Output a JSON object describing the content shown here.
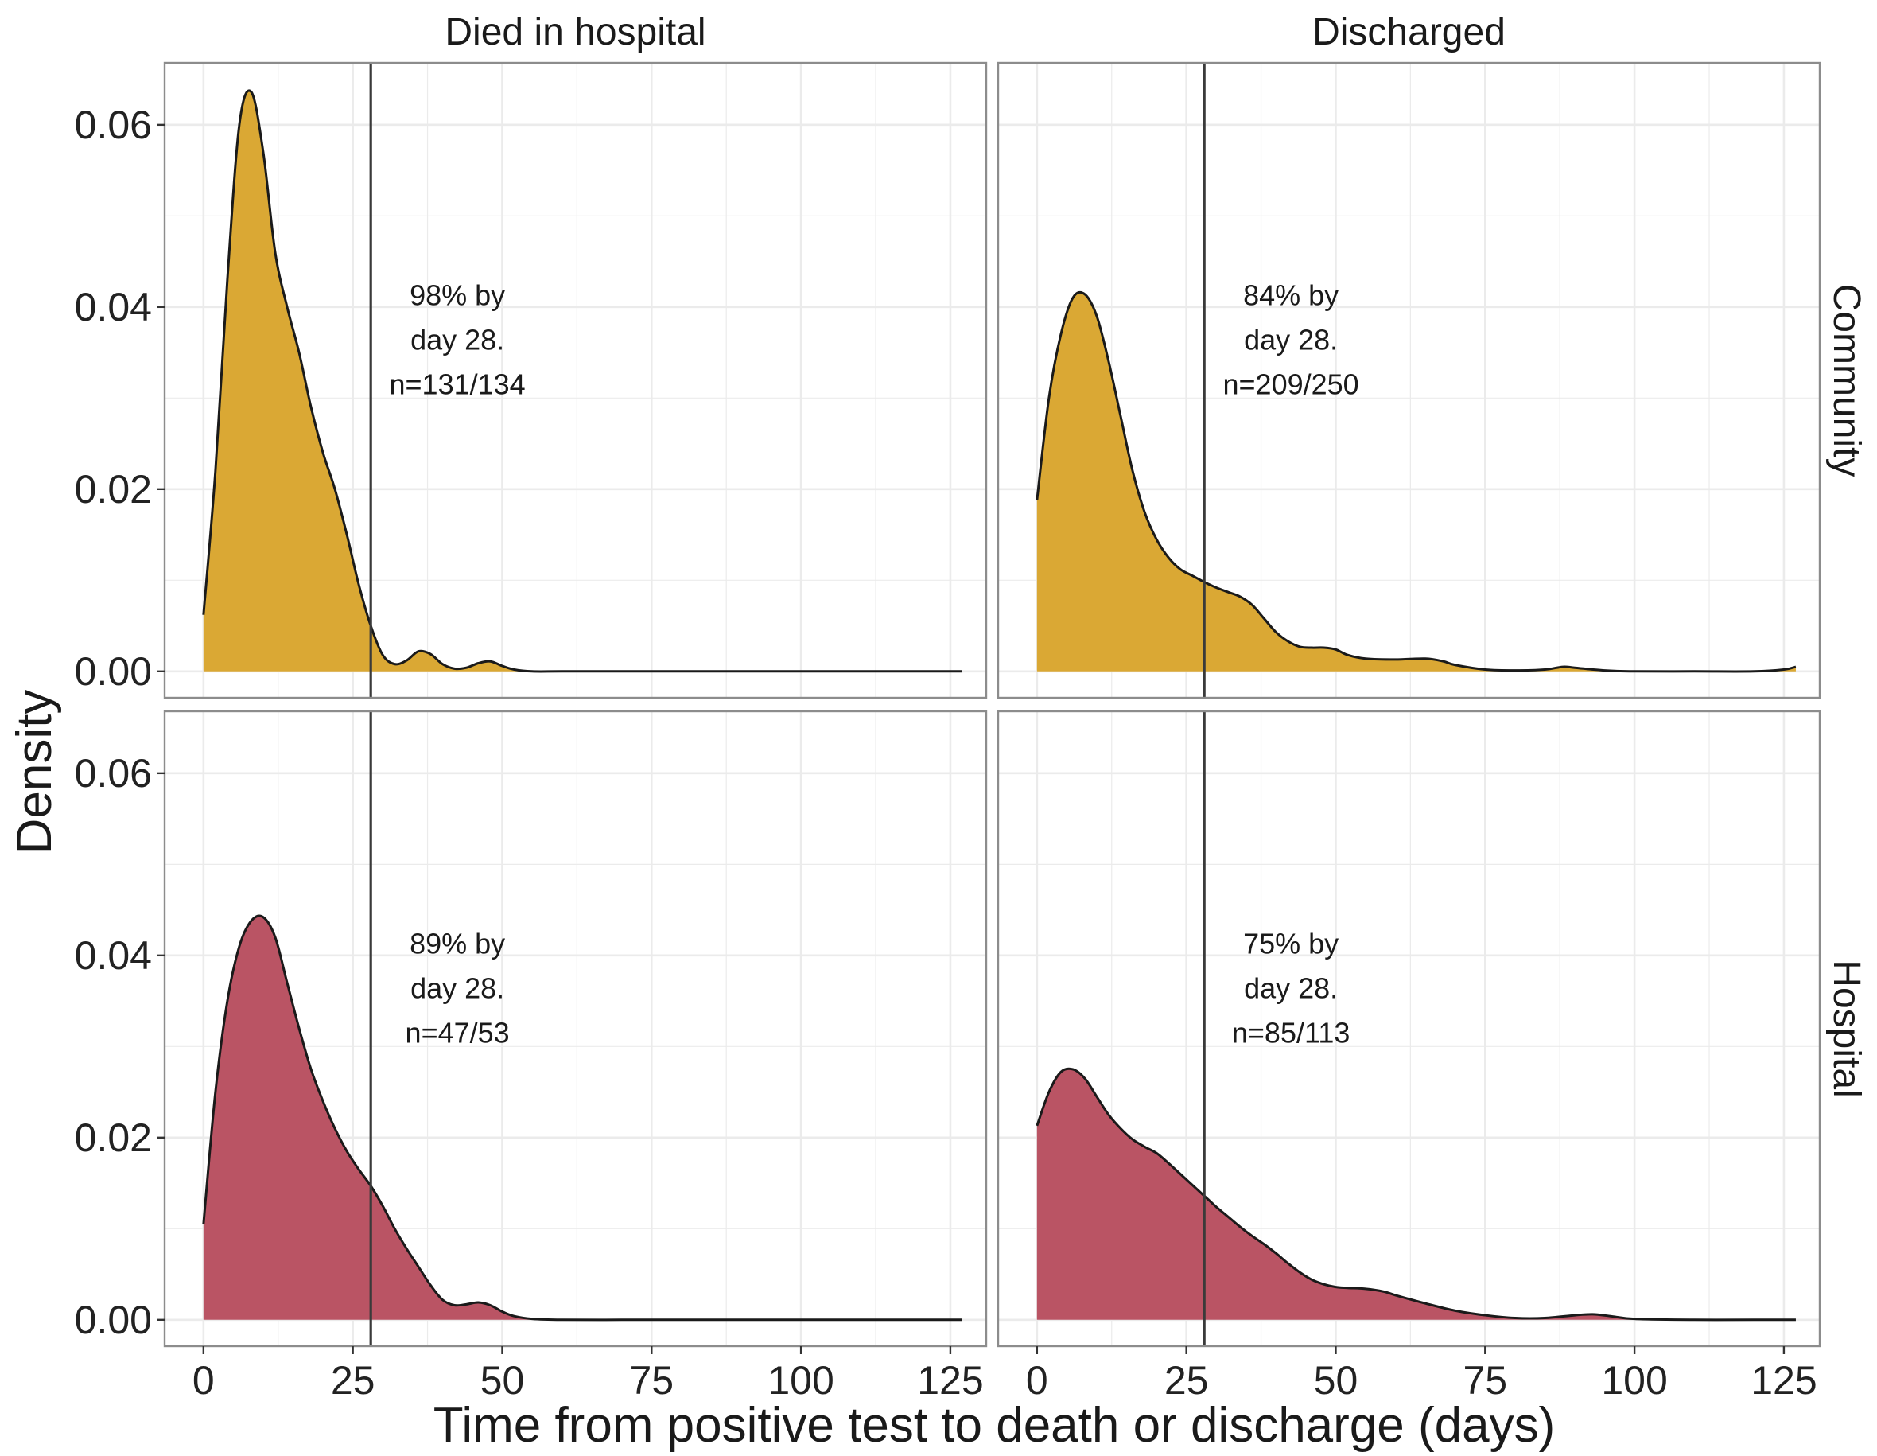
{
  "chart_data": {
    "type": "area",
    "title": "",
    "xlabel": "Time from positive test to death or discharge (days)",
    "ylabel": "Density",
    "xlim": [
      -6.5,
      131
    ],
    "ylim": [
      -0.0029,
      0.0668
    ],
    "x_ticks": [
      0,
      25,
      50,
      75,
      100,
      125
    ],
    "y_ticks": [
      0.0,
      0.02,
      0.04,
      0.06
    ],
    "x_tick_labels": [
      "0",
      "25",
      "50",
      "75",
      "100",
      "125"
    ],
    "y_tick_labels": [
      "0.00",
      "0.02",
      "0.04",
      "0.06"
    ],
    "grid": true,
    "facet_columns": [
      "Died in hospital",
      "Discharged"
    ],
    "facet_rows": [
      "Community",
      "Hospital"
    ],
    "reference_line_x": 28,
    "colors": {
      "Community": "#DAA834",
      "Hospital": "#BA5464",
      "outline": "#1a1a1a",
      "panel_border": "#8c8c8c",
      "grid": "#ebebeb",
      "strip_background": "#ffffff"
    },
    "panels": [
      {
        "row": "Community",
        "column": "Died in hospital",
        "annotation": [
          "98% by",
          "day 28.",
          "n=131/134"
        ],
        "x": [
          0,
          2,
          4,
          6,
          8,
          10,
          12,
          14,
          16,
          18,
          20,
          22,
          24,
          26,
          28,
          30,
          32,
          34,
          36,
          38,
          40,
          42,
          44,
          46,
          48,
          50,
          52,
          55,
          60,
          70,
          80,
          100,
          127
        ],
        "y": [
          0.0062,
          0.022,
          0.043,
          0.06,
          0.0636,
          0.057,
          0.046,
          0.04,
          0.035,
          0.029,
          0.024,
          0.02,
          0.015,
          0.0095,
          0.005,
          0.0018,
          0.0008,
          0.0012,
          0.0022,
          0.0019,
          0.0008,
          0.0003,
          0.0004,
          0.0009,
          0.0011,
          0.0006,
          0.0002,
          0,
          0,
          0,
          0,
          0,
          0
        ]
      },
      {
        "row": "Community",
        "column": "Discharged",
        "annotation": [
          "84% by",
          "day 28.",
          "n=209/250"
        ],
        "x": [
          0,
          2,
          4,
          6,
          8,
          10,
          12,
          14,
          16,
          18,
          20,
          22,
          24,
          26,
          28,
          30,
          32,
          34,
          36,
          38,
          40,
          42,
          44,
          46,
          48,
          50,
          52,
          55,
          60,
          65,
          68,
          70,
          75,
          80,
          85,
          88,
          90,
          95,
          100,
          110,
          120,
          125,
          127
        ],
        "y": [
          0.0188,
          0.03,
          0.037,
          0.041,
          0.0414,
          0.039,
          0.034,
          0.028,
          0.022,
          0.0175,
          0.0145,
          0.0125,
          0.0112,
          0.0105,
          0.0098,
          0.0092,
          0.0087,
          0.0082,
          0.0073,
          0.0058,
          0.0043,
          0.0033,
          0.0027,
          0.0026,
          0.0026,
          0.0024,
          0.0018,
          0.0014,
          0.0013,
          0.0014,
          0.0011,
          0.0007,
          0.0002,
          0.0001,
          0.0002,
          0.0005,
          0.0004,
          0.0001,
          0,
          0,
          0,
          0.0002,
          0.0005
        ]
      },
      {
        "row": "Hospital",
        "column": "Died in hospital",
        "annotation": [
          "89% by",
          "day 28.",
          "n=47/53"
        ],
        "x": [
          0,
          2,
          4,
          6,
          8,
          10,
          12,
          14,
          16,
          18,
          20,
          22,
          24,
          26,
          28,
          30,
          32,
          34,
          36,
          38,
          40,
          42,
          44,
          46,
          48,
          50,
          52,
          55,
          60,
          70,
          80,
          100,
          127
        ],
        "y": [
          0.0105,
          0.025,
          0.035,
          0.041,
          0.0438,
          0.0442,
          0.042,
          0.037,
          0.032,
          0.0275,
          0.024,
          0.021,
          0.0185,
          0.0165,
          0.0147,
          0.0125,
          0.01,
          0.0078,
          0.0058,
          0.0038,
          0.0022,
          0.0016,
          0.0017,
          0.0019,
          0.0016,
          0.0009,
          0.0004,
          0.0001,
          0,
          0,
          0,
          0,
          0
        ]
      },
      {
        "row": "Hospital",
        "column": "Discharged",
        "annotation": [
          "75% by",
          "day 28.",
          "n=85/113"
        ],
        "x": [
          0,
          2,
          4,
          6,
          8,
          10,
          12,
          14,
          16,
          18,
          20,
          22,
          24,
          26,
          28,
          30,
          32,
          34,
          36,
          38,
          40,
          42,
          44,
          46,
          48,
          50,
          52,
          55,
          58,
          60,
          65,
          70,
          75,
          80,
          85,
          90,
          93,
          96,
          100,
          110,
          120,
          127
        ],
        "y": [
          0.0213,
          0.025,
          0.0272,
          0.0275,
          0.0265,
          0.0245,
          0.0225,
          0.021,
          0.0198,
          0.019,
          0.0183,
          0.0172,
          0.016,
          0.0148,
          0.0136,
          0.0124,
          0.0113,
          0.0102,
          0.0092,
          0.0083,
          0.0073,
          0.0062,
          0.0052,
          0.0044,
          0.0039,
          0.0036,
          0.0035,
          0.0034,
          0.0031,
          0.0027,
          0.0018,
          0.001,
          0.0005,
          0.0002,
          0.0002,
          0.0005,
          0.0006,
          0.0004,
          0.0001,
          0,
          0,
          0
        ]
      }
    ]
  }
}
